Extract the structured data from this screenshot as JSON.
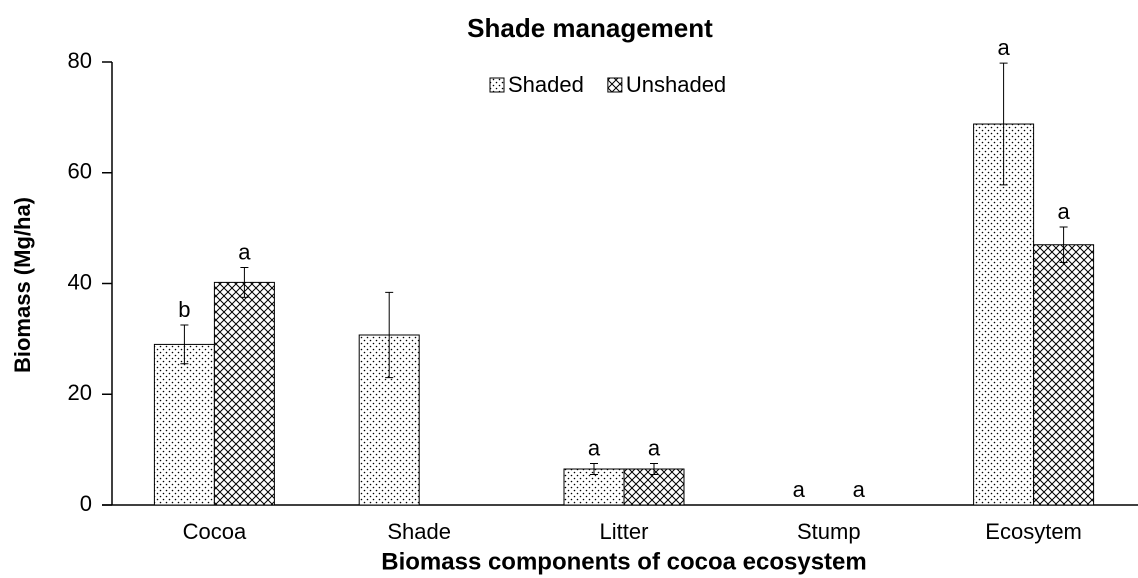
{
  "chart_data": {
    "type": "bar",
    "title": "Shade management",
    "x_label": "Biomass components of cocoa ecosystem",
    "y_label": "Biomass (Mg/ha)",
    "categories": [
      "Cocoa",
      "Shade",
      "Litter",
      "Stump",
      "Ecosytem"
    ],
    "series": [
      {
        "name": "Shaded",
        "color": "#000000",
        "pattern": "dots",
        "values": [
          29,
          30.7,
          6.5,
          0,
          68.8
        ],
        "errors": [
          3.5,
          7.7,
          1,
          0,
          11
        ],
        "annotations": [
          "b",
          null,
          "a",
          "a",
          "a"
        ]
      },
      {
        "name": "Unshaded",
        "color": "#000000",
        "pattern": "crosshatch",
        "values": [
          40.2,
          null,
          6.5,
          0,
          47
        ],
        "errors": [
          2.7,
          null,
          1,
          0,
          3.2
        ],
        "annotations": [
          "a",
          null,
          "a",
          "a",
          "a"
        ]
      }
    ],
    "ylim": [
      0,
      80
    ],
    "yticks": [
      0,
      20,
      40,
      60,
      80
    ],
    "grid": false,
    "legend": "top"
  }
}
